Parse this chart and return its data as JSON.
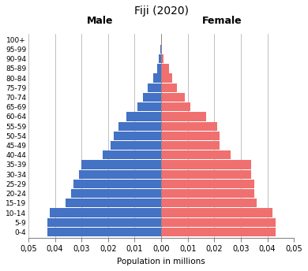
{
  "title": "Fiji (2020)",
  "xlabel": "Population in millions",
  "age_groups": [
    "0-4",
    "5-9",
    "10-14",
    "15-19",
    "20-24",
    "25-29",
    "30-34",
    "35-39",
    "40-44",
    "45-49",
    "50-54",
    "55-59",
    "60-64",
    "65-69",
    "70-74",
    "75-79",
    "80-84",
    "85-89",
    "90-94",
    "95-99",
    "100+"
  ],
  "male": [
    0.043,
    0.043,
    0.042,
    0.036,
    0.034,
    0.033,
    0.031,
    0.03,
    0.022,
    0.019,
    0.018,
    0.016,
    0.013,
    0.009,
    0.007,
    0.005,
    0.003,
    0.0015,
    0.0008,
    0.0003,
    0.0001
  ],
  "female": [
    0.043,
    0.043,
    0.042,
    0.036,
    0.035,
    0.035,
    0.034,
    0.034,
    0.026,
    0.022,
    0.022,
    0.021,
    0.017,
    0.011,
    0.009,
    0.006,
    0.004,
    0.003,
    0.001,
    0.0004,
    0.0002
  ],
  "male_color": "#4472C4",
  "female_color": "#F07070",
  "male_label": "Male",
  "female_label": "Female",
  "xlim": 0.05,
  "bg_color": "#FFFFFF",
  "grid_color": "#C0C0C0",
  "bar_height": 0.92
}
